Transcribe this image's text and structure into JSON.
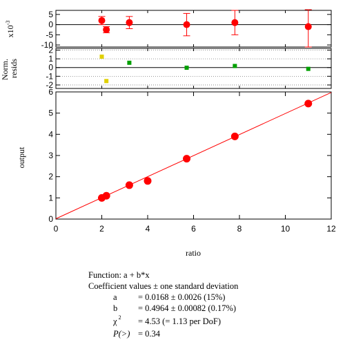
{
  "chart_data": [
    {
      "type": "scatter",
      "panel": "residuals",
      "ylabel": "x10",
      "ylabel_exponent": "-3",
      "yticks": [
        5,
        0,
        -5,
        -10
      ],
      "ylim": [
        -11,
        7
      ],
      "xlim": [
        0,
        12
      ],
      "grid": false,
      "zero_line": true,
      "series": [
        {
          "x": [
            2.0,
            2.2,
            3.2,
            5.7,
            7.8,
            11.0
          ],
          "y": [
            2.0,
            -2.5,
            1.0,
            0.0,
            1.0,
            -1.0
          ],
          "error": [
            2.0,
            1.5,
            3.0,
            5.5,
            6.0,
            10.0
          ],
          "color": "#ff0000"
        }
      ]
    },
    {
      "type": "scatter",
      "panel": "normalized residuals",
      "ylabel": "Norm. resids",
      "yticks": [
        2,
        1,
        0,
        -1,
        -2
      ],
      "ylim": [
        -2.4,
        2.2
      ],
      "xlim": [
        0,
        12
      ],
      "reference_lines": [
        2,
        1,
        -1,
        -2
      ],
      "series": [
        {
          "x": [
            2.0,
            2.2,
            3.2,
            5.7,
            7.8,
            11.0
          ],
          "y": [
            1.25,
            -1.55,
            0.55,
            -0.02,
            0.18,
            -0.15
          ],
          "colors": [
            "#e0d000",
            "#e0d000",
            "#00a000",
            "#00a000",
            "#00a000",
            "#00a000"
          ]
        }
      ]
    },
    {
      "type": "scatter",
      "panel": "main",
      "xlabel": "ratio",
      "ylabel": "output",
      "xlim": [
        0,
        12
      ],
      "ylim": [
        0,
        6
      ],
      "xticks": [
        0,
        2,
        4,
        6,
        8,
        10,
        12
      ],
      "yticks": [
        0,
        1,
        2,
        3,
        4,
        5,
        6
      ],
      "grid": false,
      "series": [
        {
          "x": [
            2.0,
            2.2,
            3.2,
            4.0,
            5.7,
            7.8,
            11.0
          ],
          "y": [
            1.0,
            1.1,
            1.6,
            1.8,
            2.85,
            3.9,
            5.45
          ],
          "color": "#ff0000"
        }
      ],
      "fit_line": {
        "intercept": 0.0168,
        "slope": 0.4964,
        "x_range": [
          0,
          12
        ],
        "color": "#ff0000"
      }
    }
  ],
  "fit_summary": {
    "function": "Function: a + b*x",
    "coeff_header": "Coefficient values ± one standard deviation",
    "a_sym": "a",
    "a_val": "= 0.0168 ± 0.0026  (15%)",
    "b_sym": "b",
    "b_val": "= 0.4964 ± 0.00082  (0.17%)",
    "chi_sym": "χ",
    "chi_exp": "2",
    "chi_val": "= 4.53 (= 1.13 per DoF)",
    "p_sym": "P(>)",
    "p_val": "= 0.34"
  }
}
